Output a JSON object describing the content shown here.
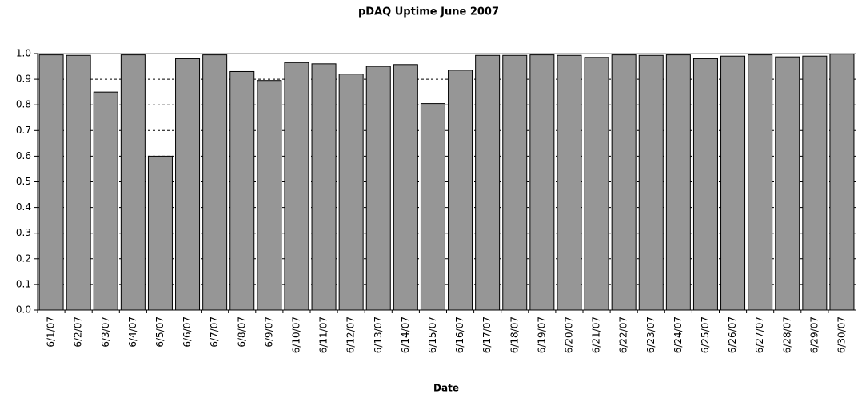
{
  "chart_data": {
    "type": "bar",
    "title": "pDAQ Uptime June 2007",
    "x_label": "Date",
    "categories": [
      "6/1/07",
      "6/2/07",
      "6/3/07",
      "6/4/07",
      "6/5/07",
      "6/6/07",
      "6/7/07",
      "6/8/07",
      "6/9/07",
      "6/10/07",
      "6/11/07",
      "6/12/07",
      "6/13/07",
      "6/14/07",
      "6/15/07",
      "6/16/07",
      "6/17/07",
      "6/18/07",
      "6/19/07",
      "6/20/07",
      "6/21/07",
      "6/22/07",
      "6/23/07",
      "6/24/07",
      "6/25/07",
      "6/26/07",
      "6/27/07",
      "6/28/07",
      "6/29/07",
      "6/30/07"
    ],
    "values": [
      0.995,
      0.993,
      0.85,
      0.995,
      0.6,
      0.98,
      0.995,
      0.93,
      0.895,
      0.965,
      0.96,
      0.92,
      0.95,
      0.957,
      0.805,
      0.935,
      0.993,
      0.993,
      0.995,
      0.993,
      0.985,
      0.995,
      0.993,
      0.995,
      0.98,
      0.99,
      0.995,
      0.987,
      0.99,
      0.998
    ],
    "color": "#969696",
    "ylim": [
      0,
      1
    ],
    "yticks": [
      {
        "value": 0,
        "label": "0.0"
      },
      0.1,
      0.2,
      0.3,
      0.4,
      0.5,
      0.6,
      0.7,
      0.8,
      0.9,
      {
        "value": 1,
        "label": "1.0"
      }
    ],
    "grid": true
  }
}
